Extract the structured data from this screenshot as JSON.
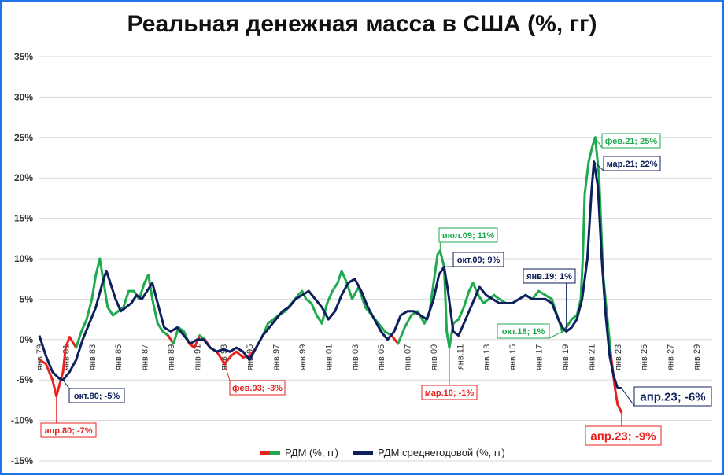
{
  "chart_data": {
    "type": "line",
    "title": "Реальная денежная масса в США (%, гг)",
    "yticks": [
      "35%",
      "30%",
      "25%",
      "20%",
      "15%",
      "10%",
      "5%",
      "0%",
      "-5%",
      "-10%",
      "-15%"
    ],
    "ylim": [
      -15,
      35
    ],
    "xticks": [
      "янв.79",
      "янв.81",
      "янв.83",
      "янв.85",
      "янв.87",
      "янв.89",
      "янв.91",
      "янв.93",
      "янв.95",
      "янв.97",
      "янв.99",
      "янв.01",
      "янв.03",
      "янв.05",
      "янв.07",
      "янв.09",
      "янв.11",
      "янв.13",
      "янв.15",
      "янв.17",
      "янв.19",
      "янв.21",
      "янв.23",
      "янв.25",
      "янв.27",
      "янв.29"
    ],
    "grid": true,
    "legend_position": "bottom",
    "series": [
      {
        "name": "РДМ (%, гг)",
        "color": "#1FAA4F",
        "negative_color": "#E8221E",
        "x": [
          1979.0,
          1979.5,
          1980.0,
          1980.3,
          1980.8,
          1981.0,
          1981.3,
          1981.8,
          1982.2,
          1982.6,
          1983.0,
          1983.3,
          1983.6,
          1983.9,
          1984.2,
          1984.6,
          1985.0,
          1985.4,
          1985.8,
          1986.2,
          1986.6,
          1987.0,
          1987.3,
          1987.6,
          1988.0,
          1988.4,
          1988.8,
          1989.2,
          1989.6,
          1990.0,
          1990.4,
          1990.8,
          1991.2,
          1991.6,
          1992.0,
          1992.5,
          1993.1,
          1993.6,
          1994.0,
          1994.5,
          1995.0,
          1995.5,
          1996.0,
          1996.4,
          1996.8,
          1997.2,
          1997.7,
          1998.2,
          1998.7,
          1999.0,
          1999.3,
          1999.7,
          2000.1,
          2000.5,
          2000.9,
          2001.3,
          2001.7,
          2002.0,
          2002.4,
          2002.8,
          2003.3,
          2003.8,
          2004.3,
          2004.8,
          2005.3,
          2005.8,
          2006.3,
          2006.8,
          2007.3,
          2007.8,
          2008.3,
          2008.7,
          2009.0,
          2009.3,
          2009.5,
          2009.8,
          2010.0,
          2010.2,
          2010.5,
          2010.9,
          2011.3,
          2011.7,
          2012.0,
          2012.4,
          2012.8,
          2013.2,
          2013.6,
          2014.0,
          2014.5,
          2015.0,
          2015.5,
          2016.0,
          2016.5,
          2017.0,
          2017.5,
          2018.0,
          2018.4,
          2018.8,
          2019.1,
          2019.5,
          2019.9,
          2020.2,
          2020.35,
          2020.5,
          2020.8,
          2021.1,
          2021.3,
          2021.6,
          2021.9,
          2022.2,
          2022.5,
          2022.8,
          2023.0,
          2023.3
        ],
        "y": [
          -2.5,
          -3,
          -5,
          -7,
          -4,
          -1,
          0.3,
          -1,
          1,
          2.5,
          5,
          8,
          10,
          7,
          4,
          3,
          3.5,
          4,
          6,
          6,
          5,
          7,
          8,
          5,
          2,
          1,
          0.5,
          -0.5,
          1.5,
          1,
          -0.5,
          -1,
          0.5,
          0,
          -1,
          -1.5,
          -3,
          -2,
          -1.5,
          -2.2,
          -2,
          -1,
          0.5,
          2,
          2.5,
          3,
          3.5,
          4.5,
          5.5,
          6,
          5,
          4.5,
          3,
          2,
          4.5,
          6,
          7,
          8.5,
          7,
          5,
          6.5,
          4,
          3,
          2,
          1,
          0.5,
          -0.5,
          1.5,
          3,
          3.5,
          2,
          3.5,
          7,
          10.5,
          11,
          9,
          1,
          -1,
          2,
          2.5,
          4,
          6,
          7,
          5.5,
          4.5,
          5,
          5.5,
          5,
          4.5,
          4.5,
          5,
          5.5,
          5,
          6,
          5.5,
          5,
          3,
          1,
          1.5,
          2.5,
          3,
          5,
          10,
          18,
          22,
          24,
          25,
          20,
          8,
          3,
          -2,
          -6,
          -8,
          -9
        ]
      },
      {
        "name": "РДМ среднегодовой (%, гг)",
        "color": "#0D1F5C",
        "x": [
          1979.0,
          1979.5,
          1980.0,
          1980.5,
          1980.8,
          1981.3,
          1981.8,
          1982.3,
          1982.8,
          1983.3,
          1983.8,
          1984.1,
          1984.4,
          1984.8,
          1985.2,
          1985.6,
          1986.0,
          1986.4,
          1986.8,
          1987.2,
          1987.6,
          1988.0,
          1988.5,
          1989.0,
          1989.5,
          1990.0,
          1990.5,
          1991.0,
          1991.5,
          1992.0,
          1992.5,
          1993.0,
          1993.5,
          1994.0,
          1994.5,
          1995.0,
          1995.5,
          1996.0,
          1996.5,
          1997.0,
          1997.5,
          1998.0,
          1998.5,
          1999.0,
          1999.5,
          2000.0,
          2000.5,
          2001.0,
          2001.5,
          2002.0,
          2002.5,
          2003.0,
          2003.5,
          2004.0,
          2004.5,
          2005.0,
          2005.5,
          2006.0,
          2006.5,
          2007.0,
          2007.5,
          2008.0,
          2008.5,
          2009.0,
          2009.4,
          2009.8,
          2010.1,
          2010.5,
          2010.9,
          2011.3,
          2011.7,
          2012.1,
          2012.5,
          2013.0,
          2013.5,
          2014.0,
          2014.5,
          2015.0,
          2015.5,
          2016.0,
          2016.5,
          2017.0,
          2017.5,
          2018.0,
          2018.5,
          2018.8,
          2019.1,
          2019.5,
          2019.9,
          2020.3,
          2020.7,
          2021.0,
          2021.2,
          2021.5,
          2021.8,
          2022.1,
          2022.4,
          2022.7,
          2023.0,
          2023.3
        ],
        "y": [
          0.5,
          -2,
          -4,
          -4.8,
          -5,
          -4,
          -2.5,
          0,
          2,
          4,
          7,
          8.5,
          7,
          5,
          3.5,
          4,
          4.5,
          5.5,
          5,
          6,
          7,
          4.5,
          1.5,
          1,
          1.5,
          0.5,
          -0.5,
          0,
          0,
          -1,
          -1.5,
          -1.2,
          -1.5,
          -1,
          -1.5,
          -2.5,
          -1,
          0.5,
          1.5,
          2.5,
          3.5,
          4,
          5,
          5.5,
          6,
          5,
          4,
          2.5,
          3.5,
          5.5,
          7,
          7.5,
          6,
          4,
          2.5,
          1,
          0,
          1,
          3,
          3.5,
          3.5,
          3,
          2.5,
          5,
          8,
          9,
          6,
          1,
          0.5,
          2,
          3.5,
          5,
          6.5,
          5.5,
          5,
          4.5,
          4.5,
          4.5,
          5,
          5.5,
          5,
          5,
          5,
          4.5,
          2.5,
          1.5,
          1,
          1.5,
          2.5,
          5,
          10,
          18,
          22,
          19,
          10,
          3,
          -2,
          -4.5,
          -6,
          -6
        ]
      }
    ],
    "annotations": [
      {
        "text": "апр.80; -7%",
        "series": 0
      },
      {
        "text": "окт.80; -5%",
        "series": 1
      },
      {
        "text": "фев.93; -3%",
        "series": 0
      },
      {
        "text": "июл.09; 11%",
        "series": 0
      },
      {
        "text": "окт.09; 9%",
        "series": 1
      },
      {
        "text": "мар.10; -1%",
        "series": 0
      },
      {
        "text": "янв.19; 1%",
        "series": 1
      },
      {
        "text": "окт.18; 1%",
        "series": 0
      },
      {
        "text": "фев.21; 25%",
        "series": 0
      },
      {
        "text": "мар.21; 22%",
        "series": 1
      },
      {
        "text": "апр.23; -6%",
        "series": 1
      },
      {
        "text": "апр.23; -9%",
        "series": 0
      }
    ]
  },
  "colors": {
    "frame": "#1E73E8",
    "grid": "#D9D9D9",
    "axis_text": "#333333"
  }
}
